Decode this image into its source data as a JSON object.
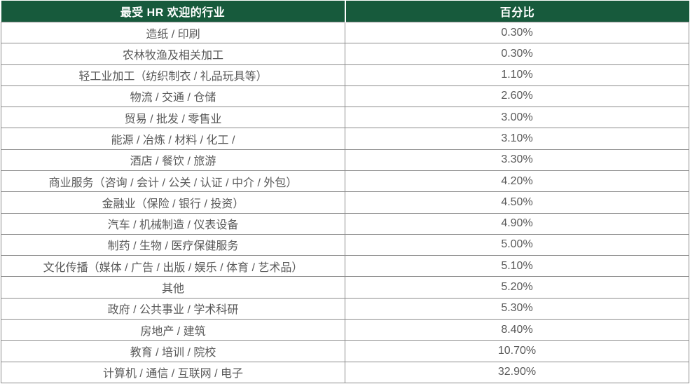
{
  "colors": {
    "header_bg": "#175A3C",
    "header_text": "#FFFFFF",
    "body_text": "#595959",
    "border": "#8C8C8C"
  },
  "chart_data": {
    "type": "table",
    "title": "最受 HR 欢迎的行业",
    "columns": [
      "最受 HR 欢迎的行业",
      "百分比"
    ],
    "rows": [
      {
        "industry": "造纸 / 印刷",
        "percentage": "0.30%"
      },
      {
        "industry": "农林牧渔及相关加工",
        "percentage": "0.30%"
      },
      {
        "industry": "轻工业加工（纺织制衣 / 礼品玩具等）",
        "percentage": "1.10%"
      },
      {
        "industry": "物流 / 交通 / 仓储",
        "percentage": "2.60%"
      },
      {
        "industry": "贸易 / 批发 / 零售业",
        "percentage": "3.00%"
      },
      {
        "industry": "能源 / 冶炼 / 材料 / 化工 /",
        "percentage": "3.10%"
      },
      {
        "industry": "酒店 / 餐饮 / 旅游",
        "percentage": "3.30%"
      },
      {
        "industry": "商业服务（咨询 / 会计 / 公关 / 认证 / 中介 / 外包）",
        "percentage": "4.20%"
      },
      {
        "industry": "金融业（保险 / 银行 / 投资）",
        "percentage": "4.50%"
      },
      {
        "industry": "汽车 / 机械制造 / 仪表设备",
        "percentage": "4.90%"
      },
      {
        "industry": "制药 / 生物 / 医疗保健服务",
        "percentage": "5.00%"
      },
      {
        "industry": "文化传播（媒体 / 广告 / 出版 / 娱乐 / 体育 / 艺术品）",
        "percentage": "5.10%"
      },
      {
        "industry": "其他",
        "percentage": "5.20%"
      },
      {
        "industry": "政府 / 公共事业 / 学术科研",
        "percentage": "5.30%"
      },
      {
        "industry": "房地产 / 建筑",
        "percentage": "8.40%"
      },
      {
        "industry": "教育 / 培训 / 院校",
        "percentage": "10.70%"
      },
      {
        "industry": "计算机 / 通信 / 互联网 / 电子",
        "percentage": "32.90%"
      }
    ],
    "values_percent": [
      0.3,
      0.3,
      1.1,
      2.6,
      3.0,
      3.1,
      3.3,
      4.2,
      4.5,
      4.9,
      5.0,
      5.1,
      5.2,
      5.3,
      8.4,
      10.7,
      32.9
    ]
  }
}
